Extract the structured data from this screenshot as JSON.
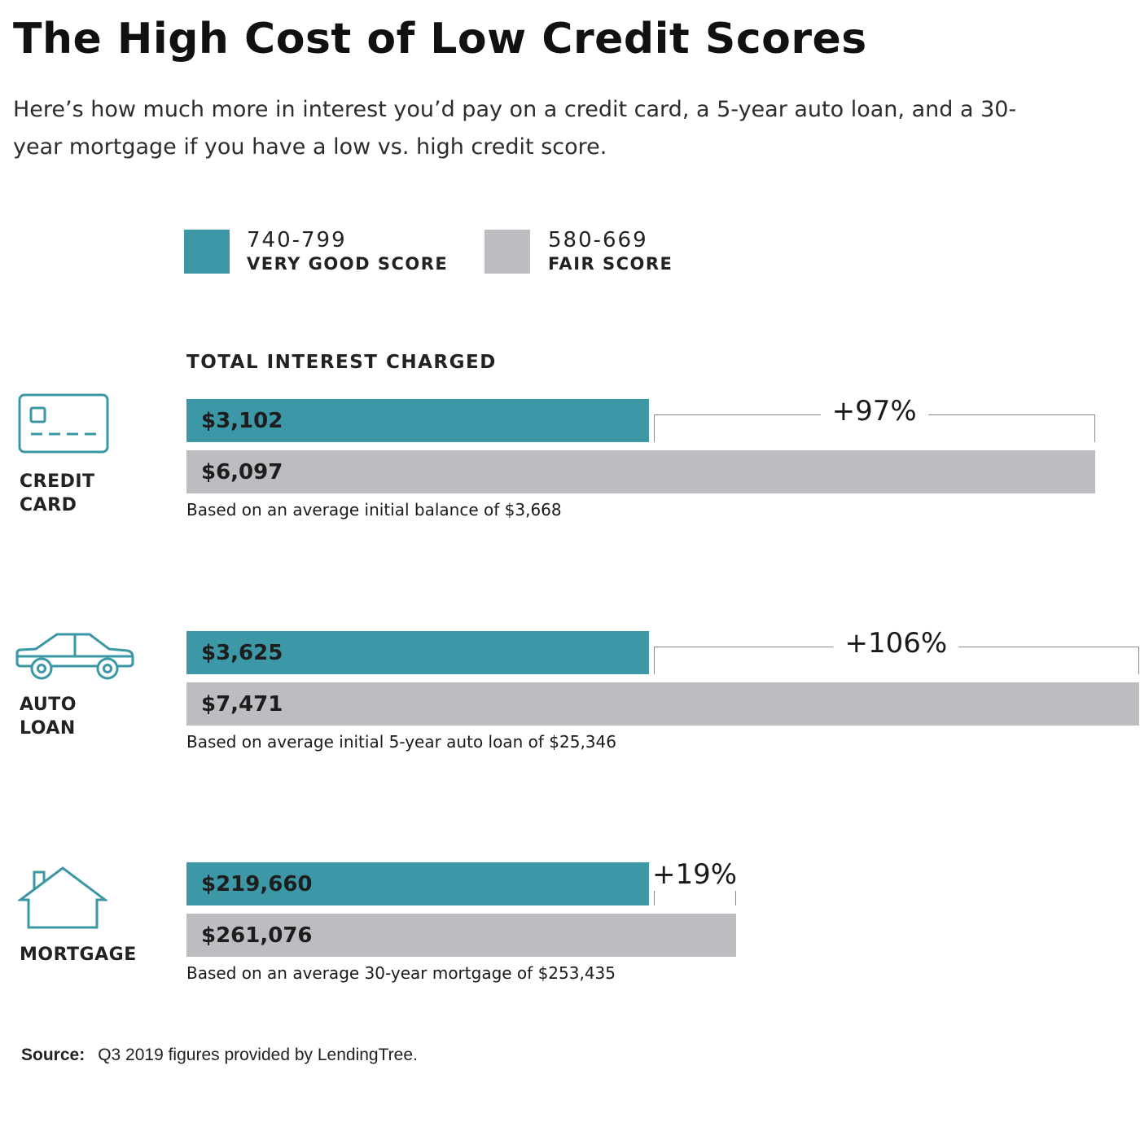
{
  "title": "The High Cost of Low Credit Scores",
  "subtitle": "Here’s how much more in interest you’d pay on a credit card, a 5-year auto loan, and a 30-year mortgage if you have a low vs. high credit score.",
  "colors": {
    "very_good": "#3c98a6",
    "fair": "#bcbdc0",
    "icon": "#3a97a3",
    "bracket": "#8a8a8a"
  },
  "legend": [
    {
      "range": "740-799",
      "label": "VERY GOOD SCORE",
      "color": "#3c98a6"
    },
    {
      "range": "580-669",
      "label": "FAIR SCORE",
      "color": "#bcbdc0"
    }
  ],
  "section_label": "TOTAL INTEREST CHARGED",
  "chart_data": {
    "type": "bar",
    "orientation": "horizontal",
    "title": "The High Cost of Low Credit Scores",
    "value_label": "TOTAL INTEREST CHARGED",
    "categories": [
      "CREDIT CARD",
      "AUTO LOAN",
      "MORTGAGE"
    ],
    "series": [
      {
        "name": "740-799 VERY GOOD SCORE",
        "values": [
          3102,
          3625,
          219660
        ]
      },
      {
        "name": "580-669 FAIR SCORE",
        "values": [
          6097,
          7471,
          261076
        ]
      }
    ],
    "groups": [
      {
        "key": "credit_card",
        "label_lines": [
          "CREDIT",
          "CARD"
        ],
        "icon": "credit-card-icon",
        "good_value": 3102,
        "good_label": "$3,102",
        "fair_value": 6097,
        "fair_label": "$6,097",
        "increase": "+97%",
        "note": "Based on an average initial balance of $3,668"
      },
      {
        "key": "auto_loan",
        "label_lines": [
          "AUTO",
          "LOAN"
        ],
        "icon": "car-icon",
        "good_value": 3625,
        "good_label": "$3,625",
        "fair_value": 7471,
        "fair_label": "$7,471",
        "increase": "+106%",
        "note": "Based on average initial 5-year auto loan of $25,346"
      },
      {
        "key": "mortgage",
        "label_lines": [
          "MORTGAGE"
        ],
        "icon": "house-icon",
        "good_value": 219660,
        "good_label": "$219,660",
        "fair_value": 261076,
        "fair_label": "$261,076",
        "increase": "+19%",
        "note": "Based on an average 30-year mortgage of $253,435"
      }
    ]
  },
  "source": {
    "label": "Source:",
    "text": "Q3 2019 figures provided by LendingTree."
  }
}
